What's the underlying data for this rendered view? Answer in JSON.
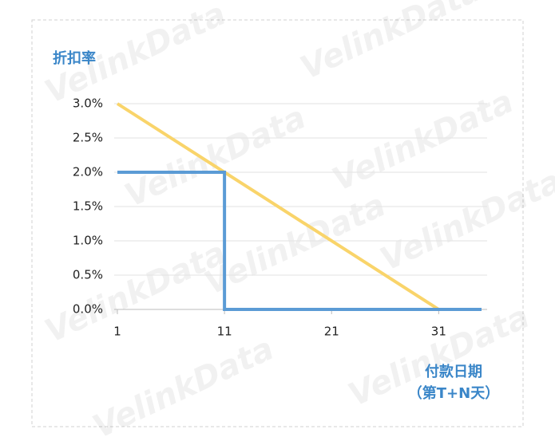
{
  "chart_data": {
    "type": "line",
    "ylabel": "折扣率",
    "xlabel": [
      "付款日期",
      "（第T+N天）"
    ],
    "watermark": "VelinkData",
    "xlim": [
      1,
      35
    ],
    "xticks": [
      1,
      11,
      21,
      31
    ],
    "ylim": [
      0,
      3
    ],
    "yticks": [
      {
        "value": 0,
        "label": "0.0%"
      },
      {
        "value": 0.5,
        "label": "0.5%"
      },
      {
        "value": 1,
        "label": "1.0%"
      },
      {
        "value": 1.5,
        "label": "1.5%"
      },
      {
        "value": 2,
        "label": "2.0%"
      },
      {
        "value": 2.5,
        "label": "2.5%"
      },
      {
        "value": 3,
        "label": "3.0%"
      }
    ],
    "grid": true,
    "series": [
      {
        "color": "#f9d46a",
        "x": [
          1,
          31,
          35
        ],
        "values": [
          3,
          0,
          0
        ]
      },
      {
        "color": "#5b9bd5",
        "x": [
          1,
          11,
          11,
          35
        ],
        "values": [
          2,
          2,
          0,
          0
        ]
      }
    ]
  }
}
